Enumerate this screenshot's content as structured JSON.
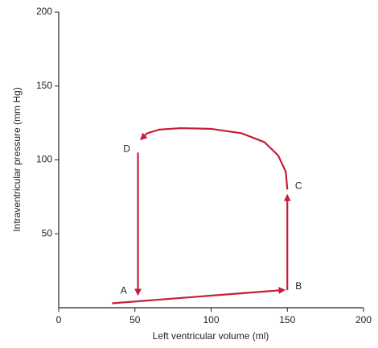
{
  "chart_data": {
    "type": "line",
    "xlabel": "Left ventricular volume (ml)",
    "ylabel": "Intraventricular pressure (mm Hg)",
    "xlim": [
      0,
      200
    ],
    "xticks": [
      0,
      50,
      100,
      150,
      200
    ],
    "ylim": [
      0,
      200
    ],
    "yticks": [
      50,
      100,
      150,
      200
    ],
    "series": [
      {
        "color": "#c41e3a",
        "x": [
          35,
          148,
          null,
          150,
          150,
          null,
          150,
          149,
          144,
          135,
          120,
          100,
          80,
          66,
          58,
          54,
          null,
          52,
          52
        ],
        "y": [
          3,
          12,
          null,
          12,
          76,
          null,
          80,
          92,
          103,
          112,
          118,
          121,
          121.5,
          120.5,
          118,
          114,
          null,
          105,
          9
        ]
      }
    ],
    "points": [
      {
        "label": "A",
        "x": 50,
        "y": 9
      },
      {
        "label": "B",
        "x": 150,
        "y": 12
      },
      {
        "label": "C",
        "x": 150,
        "y": 80
      },
      {
        "label": "D",
        "x": 52,
        "y": 105
      }
    ]
  }
}
